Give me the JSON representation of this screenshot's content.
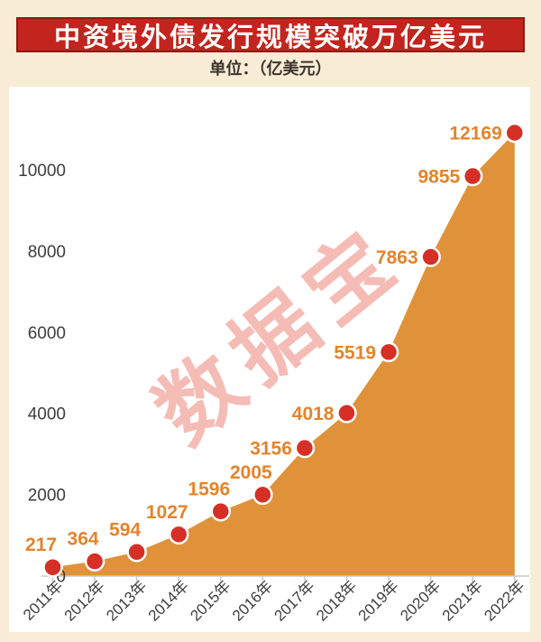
{
  "header": {
    "title": "中资境外债发行规模突破万亿美元",
    "subtitle": "单位：（亿美元）"
  },
  "watermark": {
    "text": "数据宝"
  },
  "colors": {
    "page_bg": "#f8ecd6",
    "panel_bg": "#ffffff",
    "banner_bg": "#c2241e",
    "banner_border": "#911811",
    "banner_text": "#ffffff",
    "subtitle_text": "#3c332c",
    "area_fill": "#e0923a",
    "point_fill": "#d52f26",
    "point_stroke": "#ffffff",
    "label_color": "#e5832b",
    "axis_text": "#3d3d3d",
    "axis_line": "#c9c9c9",
    "watermark_color": "#f5bcb6"
  },
  "chart_data": {
    "type": "area",
    "title": "中资境外债发行规模突破万亿美元",
    "unit": "亿美元",
    "categories": [
      "2011年",
      "2012年",
      "2013年",
      "2014年",
      "2015年",
      "2016年",
      "2017年",
      "2018年",
      "2019年",
      "2020年",
      "2021年",
      "2022年"
    ],
    "values": [
      217,
      364,
      594,
      1027,
      1596,
      2005,
      3156,
      4018,
      5519,
      7863,
      9855,
      12169
    ],
    "yticks": [
      0,
      2000,
      4000,
      6000,
      8000,
      10000
    ],
    "ylim": [
      0,
      11000
    ],
    "xlabel": "",
    "ylabel": "",
    "grid": false,
    "legend": false,
    "point_labels": true,
    "x_tick_rotation": -45
  }
}
